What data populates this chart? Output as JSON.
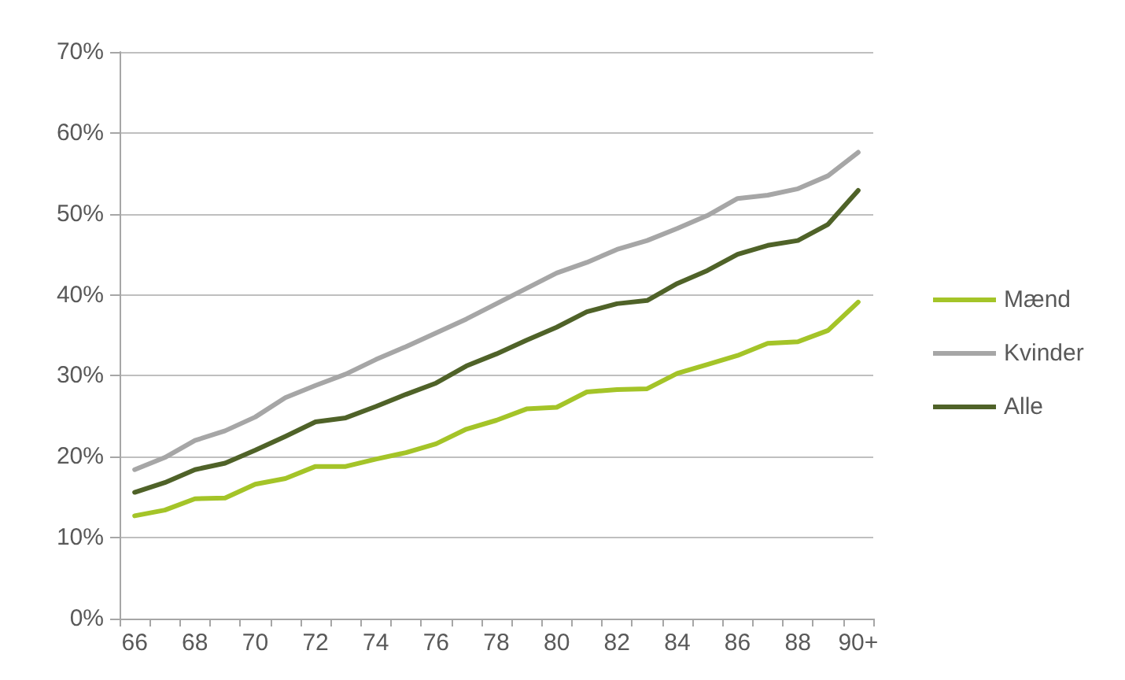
{
  "chart_data": {
    "type": "line",
    "categories": [
      "66",
      null,
      "68",
      null,
      "70",
      null,
      "72",
      null,
      "74",
      null,
      "76",
      null,
      "78",
      null,
      "80",
      null,
      "82",
      null,
      "84",
      null,
      "86",
      null,
      "88",
      null,
      "90+"
    ],
    "series": [
      {
        "name": "Mænd",
        "color": "#a4c428",
        "values": [
          12.7,
          13.4,
          14.8,
          14.9,
          16.6,
          17.3,
          18.8,
          18.8,
          19.7,
          20.5,
          21.6,
          23.4,
          24.5,
          25.9,
          26.1,
          28.0,
          28.3,
          28.4,
          30.3,
          31.4,
          32.5,
          34.0,
          34.2,
          35.6,
          39.1
        ]
      },
      {
        "name": "Kvinder",
        "color": "#a6a6a6",
        "values": [
          18.4,
          19.9,
          22.0,
          23.2,
          24.9,
          27.3,
          28.8,
          30.2,
          32.0,
          33.6,
          35.3,
          37.0,
          38.9,
          40.8,
          42.7,
          44.0,
          45.6,
          46.7,
          48.2,
          49.8,
          51.9,
          52.3,
          53.1,
          54.7,
          57.6
        ]
      },
      {
        "name": "Alle",
        "color": "#4f6228",
        "values": [
          15.6,
          16.8,
          18.4,
          19.2,
          20.8,
          22.5,
          24.3,
          24.8,
          26.2,
          27.7,
          29.1,
          31.2,
          32.7,
          34.4,
          36.0,
          37.9,
          38.9,
          39.3,
          41.4,
          43.0,
          45.0,
          46.1,
          46.7,
          48.7,
          52.9
        ]
      }
    ],
    "ylim": [
      0,
      70
    ],
    "yticks": [
      {
        "value": 0,
        "label": "0%"
      },
      {
        "value": 10,
        "label": "10%"
      },
      {
        "value": 20,
        "label": "20%"
      },
      {
        "value": 30,
        "label": "30%"
      },
      {
        "value": 40,
        "label": "40%"
      },
      {
        "value": 50,
        "label": "50%"
      },
      {
        "value": 60,
        "label": "60%"
      },
      {
        "value": 70,
        "label": "70%"
      }
    ],
    "grid": "y",
    "legend": "right",
    "marker": "none"
  }
}
